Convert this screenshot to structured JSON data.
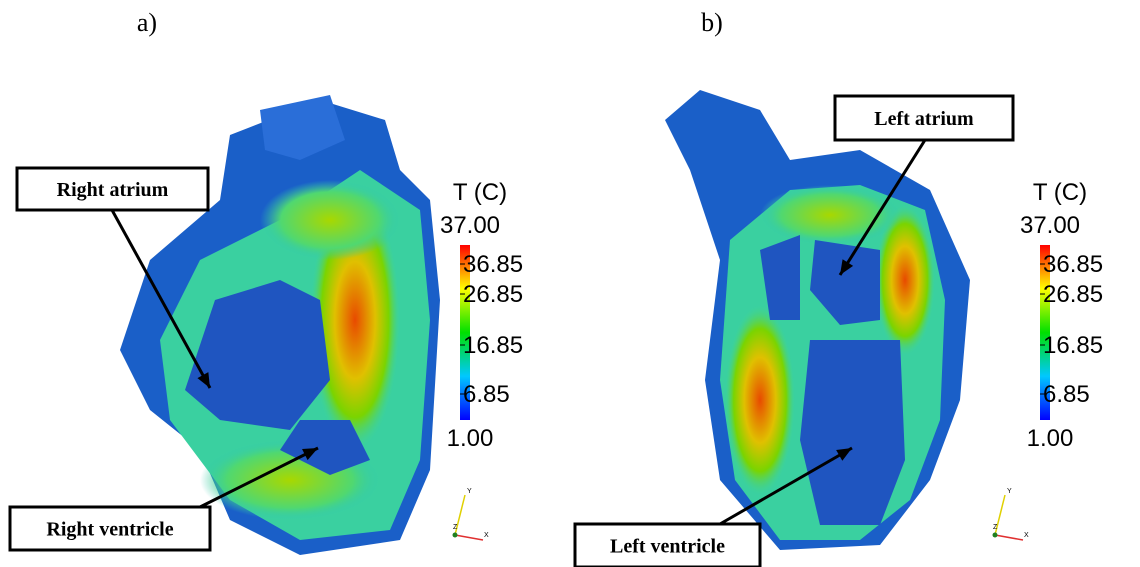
{
  "panels": [
    {
      "label": "a)",
      "colorbar": {
        "title": "T (C)",
        "max": "37.00",
        "ticks": [
          "36.85",
          "26.85",
          "16.85",
          "6.85"
        ],
        "min": "1.00"
      },
      "annotations": [
        "Right atrium",
        "Right ventricle"
      ],
      "axes": [
        "Y",
        "Z",
        "X"
      ]
    },
    {
      "label": "b)",
      "colorbar": {
        "title": "T (C)",
        "max": "37.00",
        "ticks": [
          "36.85",
          "26.85",
          "16.85",
          "6.85"
        ],
        "min": "1.00"
      },
      "annotations": [
        "Left atrium",
        "Left ventricle"
      ],
      "axes": [
        "Y",
        "Z",
        "X"
      ]
    }
  ]
}
